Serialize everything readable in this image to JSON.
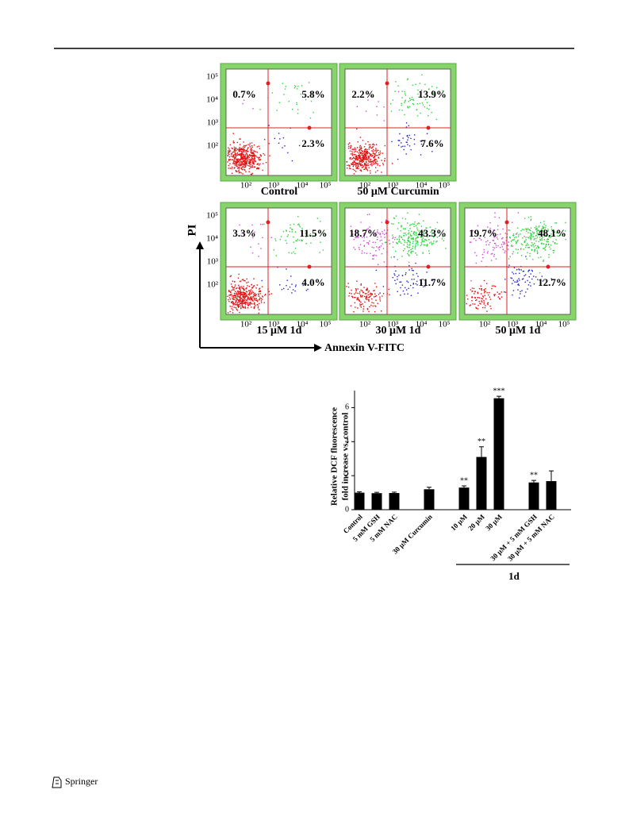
{
  "flow_figure": {
    "axis_ticks": [
      "10²",
      "10³",
      "10⁴",
      "10⁵"
    ],
    "y_axis_label": "PI",
    "x_axis_label": "Annexin V-FITC",
    "panels": [
      {
        "label": "Control",
        "upper_left": "0.7%",
        "upper_right": "5.8%",
        "lower_right": "2.3%"
      },
      {
        "label": "50 μM Curcumin",
        "upper_left": "2.2%",
        "upper_right": "13.9%",
        "lower_right": "7.6%"
      },
      {
        "label": "15 μM  1d",
        "upper_left": "3.3%",
        "upper_right": "11.5%",
        "lower_right": "4.0%"
      },
      {
        "label": "30 μM 1d",
        "upper_left": "18.7%",
        "upper_right": "43.3%",
        "lower_right": "11.7%"
      },
      {
        "label": "50 μM 1d",
        "upper_left": "19.7%",
        "upper_right": "48.1%",
        "lower_right": "12.7%"
      }
    ]
  },
  "chart_data": {
    "type": "bar",
    "ylabel": [
      "Relative DCF fluorescence",
      "fold increase vs. control"
    ],
    "categories": [
      "Control",
      "5 mM GSH",
      "5 mM NAC",
      null,
      "30 μM Curcumin",
      null,
      "10 μM",
      "20 μM",
      "30 μM",
      null,
      "30 μM + 5 mM GSH",
      "30 μM + 5 mM NAC"
    ],
    "values": [
      1.0,
      0.97,
      0.98,
      null,
      1.2,
      null,
      1.3,
      3.1,
      6.55,
      null,
      1.6,
      1.68
    ],
    "errors": [
      0.05,
      0.05,
      0.05,
      null,
      0.12,
      null,
      0.1,
      0.6,
      0.12,
      null,
      0.12,
      0.6
    ],
    "significance": [
      null,
      null,
      null,
      null,
      null,
      null,
      "**",
      "**",
      "***",
      null,
      "**",
      null
    ],
    "group_label": "1d",
    "color": "#000000",
    "ylim": [
      0,
      7
    ],
    "yticks": [
      0,
      2,
      4,
      6
    ]
  },
  "footer": {
    "publisher": "Springer"
  }
}
